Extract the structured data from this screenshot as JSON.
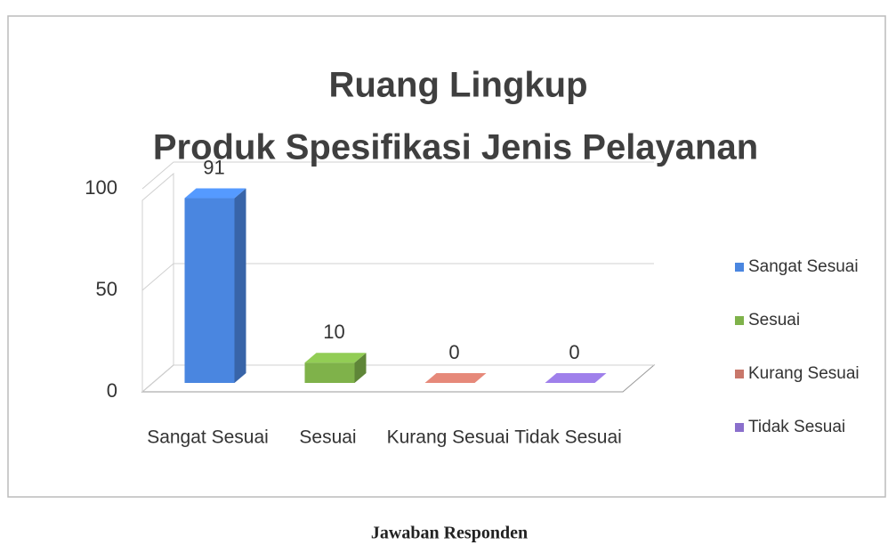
{
  "chart_data": {
    "type": "bar3d",
    "title": [
      "Ruang Lingkup",
      "Produk Spesifikasi Jenis Pelayanan"
    ],
    "categories": [
      "Sangat Sesuai",
      "Sesuai",
      "Kurang Sesuai",
      "Tidak Sesuai"
    ],
    "values": [
      91,
      10,
      0,
      0
    ],
    "colors": [
      "#4a86e0",
      "#7fb24a",
      "#c8776a",
      "#8a6fcc"
    ],
    "ylim": [
      0,
      100
    ],
    "yticks": [
      0,
      50,
      100
    ],
    "grid": true,
    "legend": "right",
    "caption": "Jawaban Responden"
  }
}
